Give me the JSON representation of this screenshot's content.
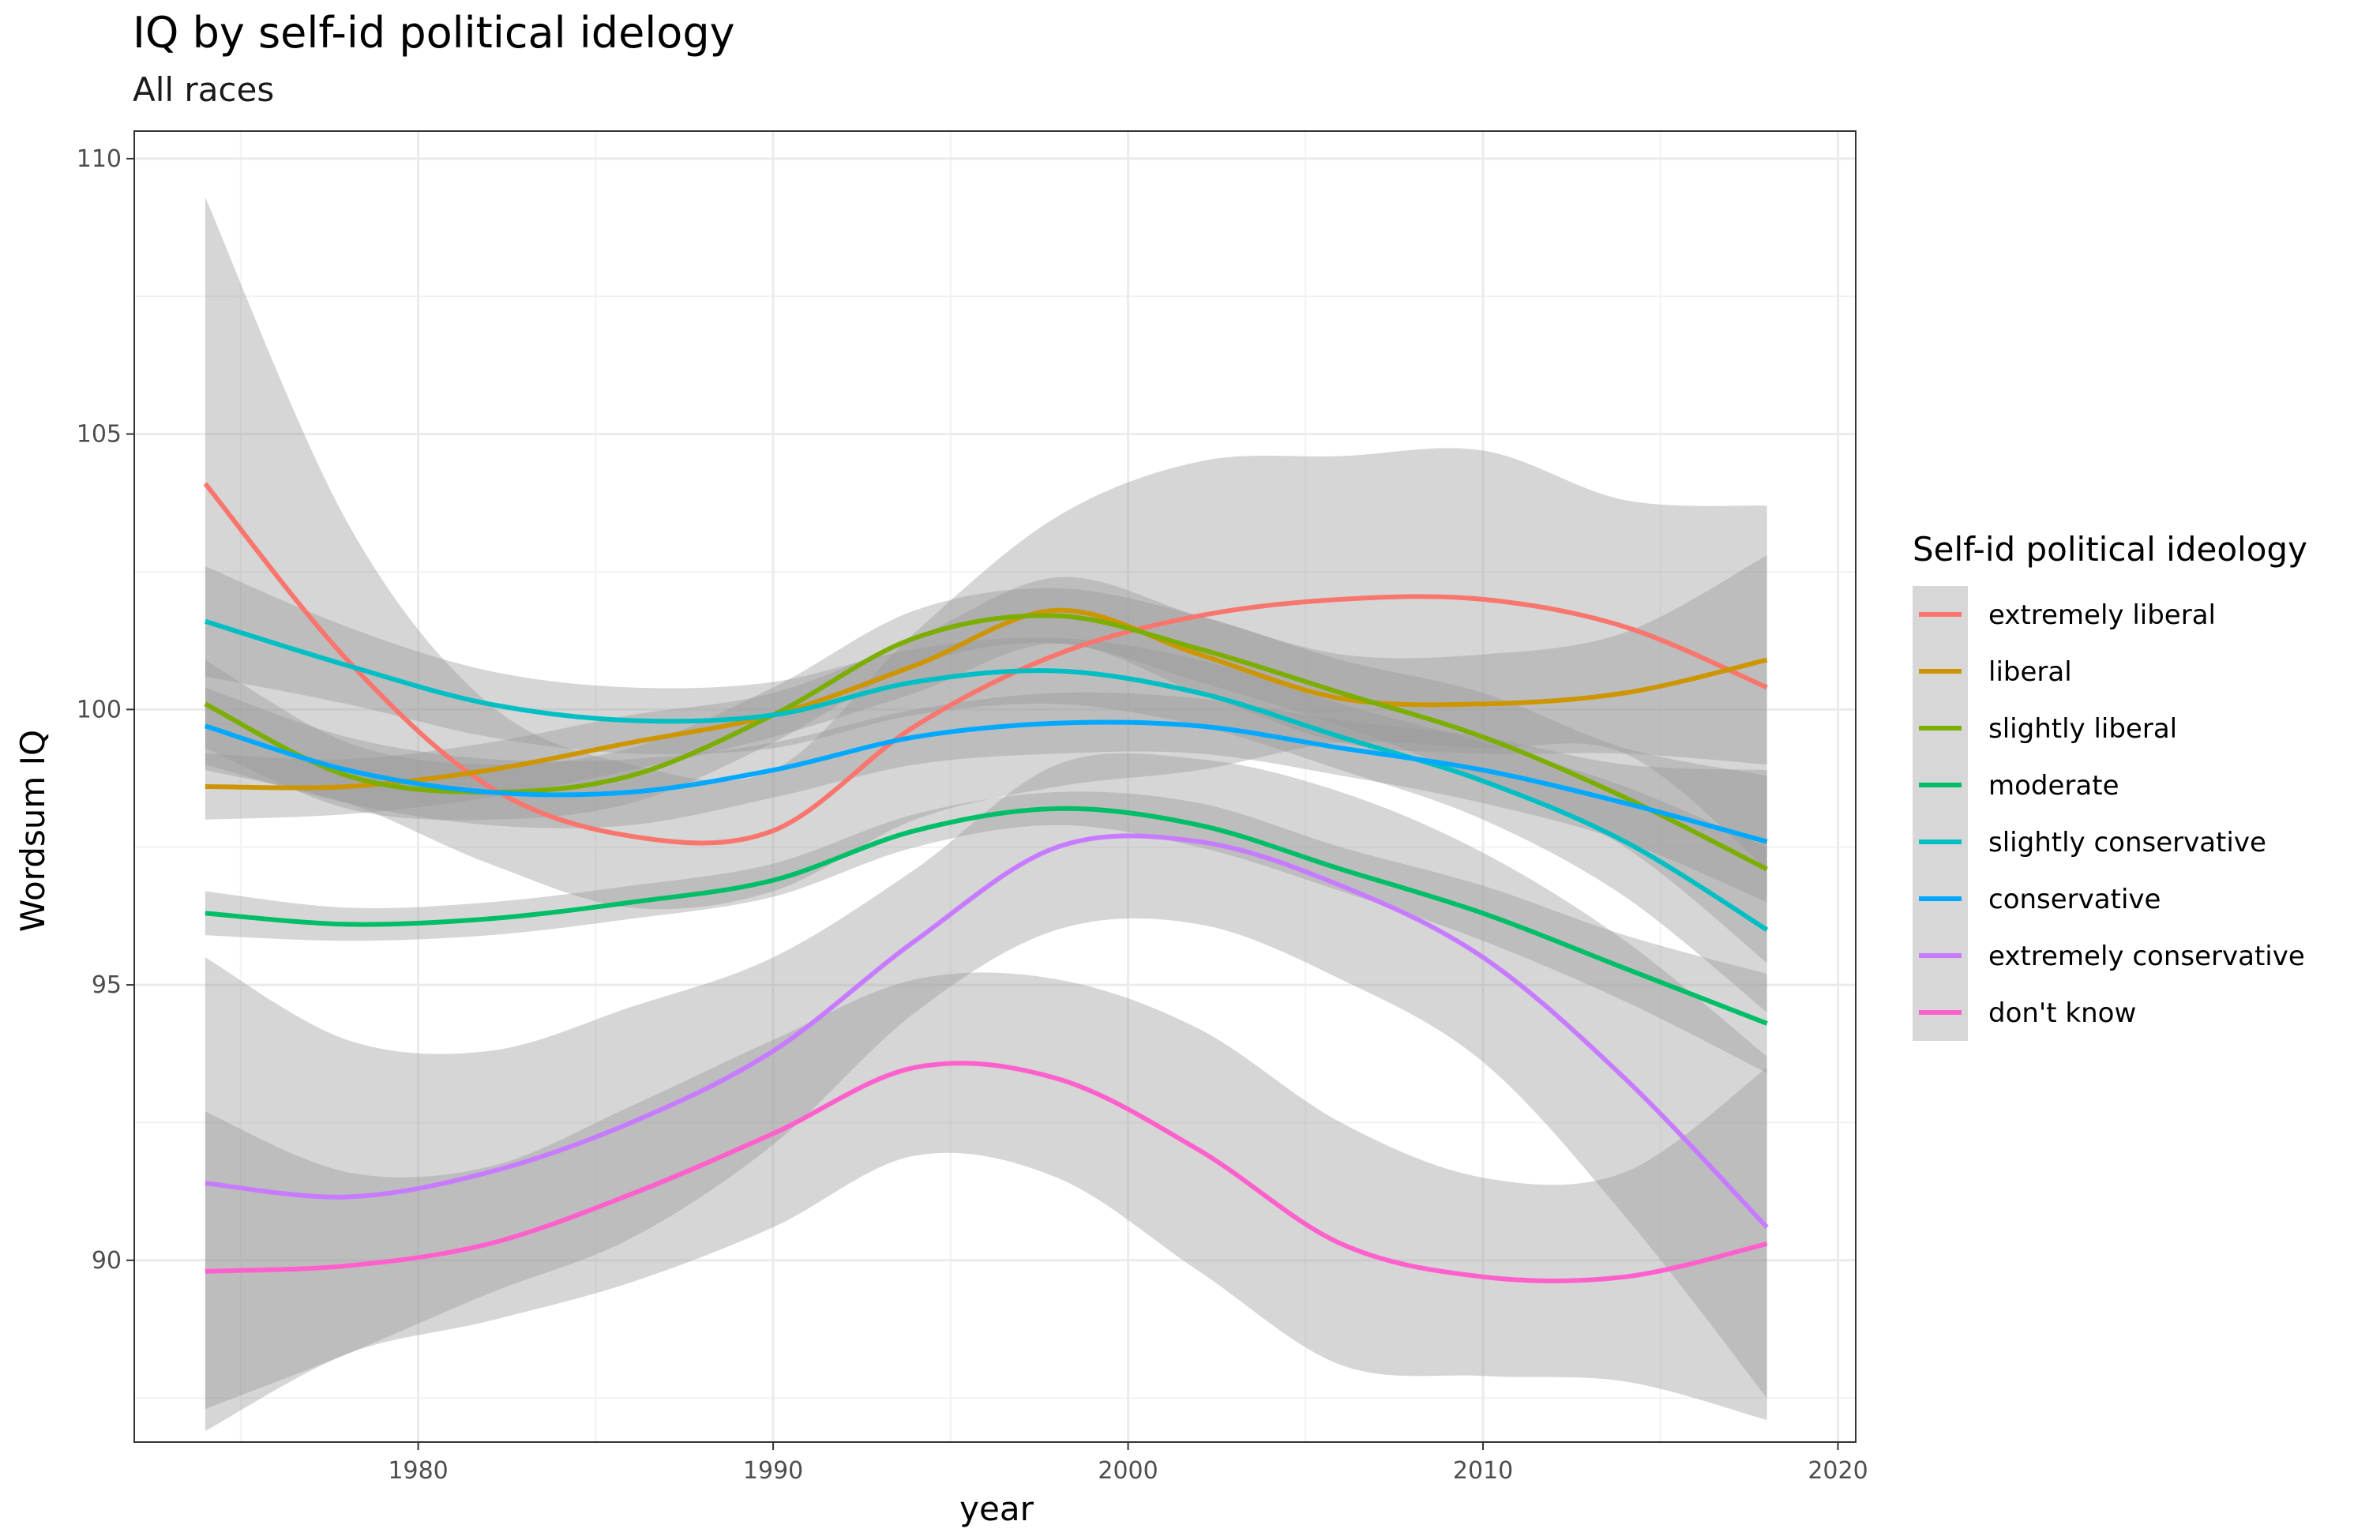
{
  "chart_data": {
    "type": "line",
    "title": "IQ by self-id political idelogy",
    "subtitle": "All races",
    "xlabel": "year",
    "ylabel": "Wordsum IQ",
    "xlim": [
      1972,
      2020.5
    ],
    "ylim": [
      86.7,
      110.5
    ],
    "x_ticks": [
      1980,
      1990,
      2000,
      2010,
      2020
    ],
    "y_ticks": [
      90,
      95,
      100,
      105,
      110
    ],
    "grid": true,
    "legend_position": "right",
    "legend_title": "Self-id political ideology",
    "x": [
      1974,
      1978,
      1982,
      1986,
      1990,
      1994,
      1998,
      2002,
      2006,
      2010,
      2014,
      2018
    ],
    "series": [
      {
        "name": "extremely liberal",
        "color": "#F8766D",
        "values": [
          104.1,
          100.9,
          98.6,
          97.7,
          97.8,
          99.7,
          101.0,
          101.7,
          102.0,
          102.0,
          101.5,
          100.4
        ],
        "lower": [
          98.9,
          98.3,
          97.2,
          96.4,
          96.7,
          98.0,
          98.6,
          98.9,
          99.4,
          99.3,
          99.2,
          97.1
        ],
        "upper": [
          109.3,
          103.4,
          100.1,
          99.0,
          98.9,
          101.4,
          103.5,
          104.5,
          104.6,
          104.7,
          103.8,
          103.7
        ]
      },
      {
        "name": "liberal",
        "color": "#CD9600",
        "values": [
          98.6,
          98.6,
          98.9,
          99.4,
          99.9,
          100.8,
          101.8,
          101.0,
          100.2,
          100.1,
          100.3,
          100.9
        ],
        "lower": [
          98.0,
          98.1,
          98.4,
          98.9,
          99.5,
          100.3,
          101.2,
          100.3,
          99.4,
          99.2,
          99.2,
          99.0
        ],
        "upper": [
          99.2,
          99.1,
          99.4,
          99.9,
          100.3,
          101.3,
          102.4,
          101.7,
          101.0,
          101.0,
          101.4,
          102.8
        ]
      },
      {
        "name": "slightly liberal",
        "color": "#7CAE00",
        "values": [
          100.1,
          98.8,
          98.5,
          98.8,
          99.9,
          101.3,
          101.7,
          101.1,
          100.3,
          99.5,
          98.4,
          97.1
        ],
        "lower": [
          99.3,
          98.2,
          98.0,
          98.3,
          99.4,
          100.8,
          101.2,
          100.5,
          99.7,
          98.7,
          97.5,
          95.4
        ],
        "upper": [
          100.9,
          99.4,
          99.0,
          99.3,
          100.4,
          101.8,
          102.2,
          101.7,
          100.9,
          100.3,
          99.3,
          98.8
        ]
      },
      {
        "name": "moderate",
        "color": "#00BE67",
        "values": [
          96.3,
          96.1,
          96.2,
          96.5,
          96.9,
          97.8,
          98.2,
          97.9,
          97.1,
          96.3,
          95.3,
          94.3
        ],
        "lower": [
          95.9,
          95.8,
          95.9,
          96.2,
          96.6,
          97.5,
          97.9,
          97.5,
          96.7,
          95.8,
          94.7,
          93.4
        ],
        "upper": [
          96.7,
          96.4,
          96.5,
          96.8,
          97.2,
          98.1,
          98.5,
          98.3,
          97.5,
          96.8,
          95.9,
          95.2
        ]
      },
      {
        "name": "slightly conservative",
        "color": "#00BFC4",
        "values": [
          101.6,
          100.8,
          100.1,
          99.8,
          99.9,
          100.5,
          100.7,
          100.3,
          99.5,
          98.7,
          97.6,
          96.0
        ],
        "lower": [
          100.6,
          100.1,
          99.5,
          99.2,
          99.3,
          99.9,
          100.1,
          99.7,
          98.9,
          98.0,
          96.6,
          94.5
        ],
        "upper": [
          102.6,
          101.5,
          100.7,
          100.4,
          100.5,
          101.1,
          101.3,
          100.9,
          100.1,
          99.4,
          98.6,
          97.5
        ]
      },
      {
        "name": "conservative",
        "color": "#00A9FF",
        "values": [
          99.7,
          98.9,
          98.5,
          98.5,
          98.9,
          99.5,
          99.75,
          99.7,
          99.3,
          98.9,
          98.3,
          97.6
        ],
        "lower": [
          99.0,
          98.3,
          97.9,
          97.9,
          98.4,
          99.0,
          99.2,
          99.2,
          98.8,
          98.3,
          97.6,
          96.5
        ],
        "upper": [
          100.4,
          99.5,
          99.1,
          99.1,
          99.4,
          100.0,
          100.3,
          100.2,
          99.8,
          99.5,
          99.0,
          98.9
        ]
      },
      {
        "name": "extremely conservative",
        "color": "#C77CFF",
        "values": [
          91.4,
          91.15,
          91.6,
          92.5,
          93.8,
          95.8,
          97.5,
          97.6,
          96.8,
          95.5,
          93.3,
          90.6
        ],
        "lower": [
          87.3,
          88.3,
          89.4,
          90.4,
          92.1,
          94.5,
          96.0,
          96.1,
          95.1,
          93.6,
          90.8,
          87.5
        ],
        "upper": [
          95.5,
          94.0,
          93.8,
          94.6,
          95.5,
          97.1,
          99.0,
          99.1,
          98.5,
          97.4,
          95.8,
          93.7
        ]
      },
      {
        "name": "don't know",
        "color": "#FF61CC",
        "values": [
          89.8,
          89.9,
          90.3,
          91.2,
          92.3,
          93.5,
          93.3,
          92.0,
          90.3,
          89.7,
          89.7,
          90.3
        ],
        "lower": [
          86.9,
          88.3,
          88.9,
          89.6,
          90.6,
          91.9,
          91.5,
          89.8,
          88.1,
          87.9,
          87.8,
          87.1
        ],
        "upper": [
          92.7,
          91.6,
          91.7,
          92.8,
          94.0,
          95.1,
          95.1,
          94.2,
          92.5,
          91.5,
          91.6,
          93.5
        ]
      }
    ]
  }
}
